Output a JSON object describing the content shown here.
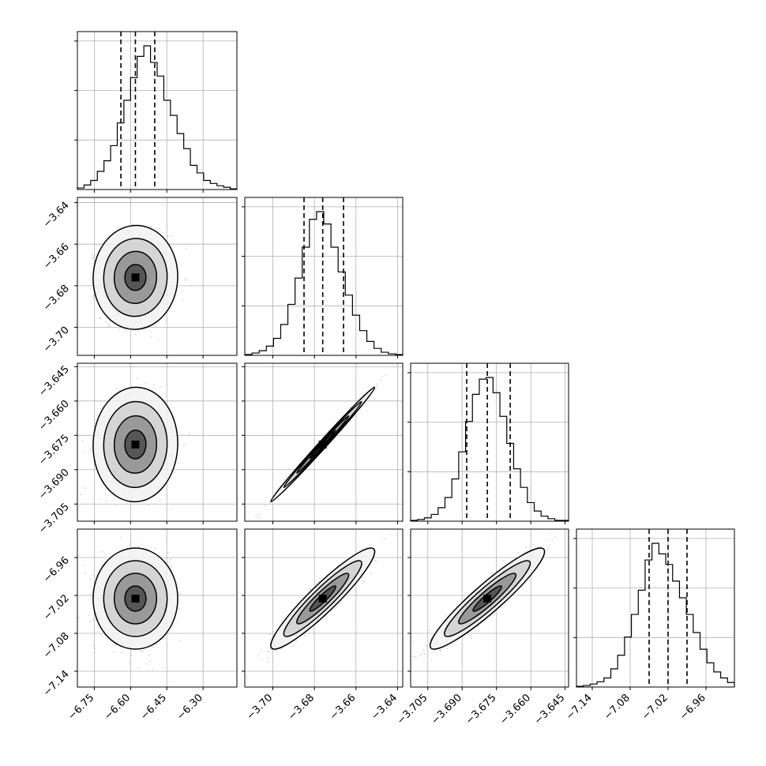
{
  "chart_data": {
    "type": "corner",
    "grid": true,
    "n_params": 4,
    "quantiles_shown": [
      0.16,
      0.5,
      0.84
    ],
    "params": [
      {
        "index": 0,
        "median": -6.58,
        "lower": -6.64,
        "upper": -6.5,
        "range": [
          -6.82,
          -6.16
        ],
        "ticks": [
          -6.75,
          -6.6,
          -6.45,
          -6.3
        ],
        "tick_labels": [
          "−6.75",
          "−6.60",
          "−6.45",
          "−6.30"
        ]
      },
      {
        "index": 1,
        "median": -3.676,
        "lower": -3.685,
        "upper": -3.666,
        "range": [
          -3.7135,
          -3.6375
        ],
        "ticks": [
          -3.7,
          -3.68,
          -3.66,
          -3.64
        ],
        "tick_labels": [
          "−3.70",
          "−3.68",
          "−3.66",
          "−3.64"
        ]
      },
      {
        "index": 2,
        "median": -3.679,
        "lower": -3.688,
        "upper": -3.669,
        "range": [
          -3.7125,
          -3.6435
        ],
        "ticks": [
          -3.705,
          -3.69,
          -3.675,
          -3.66,
          -3.645
        ],
        "tick_labels": [
          "−3.705",
          "−3.690",
          "−3.675",
          "−3.660",
          "−3.645"
        ]
      },
      {
        "index": 3,
        "median": -7.02,
        "lower": -7.05,
        "upper": -6.99,
        "range": [
          -7.165,
          -6.915
        ],
        "ticks": [
          -7.14,
          -7.08,
          -7.02,
          -6.96
        ],
        "tick_labels": [
          "−7.14",
          "−7.08",
          "−7.02",
          "−6.96"
        ]
      }
    ],
    "histograms": [
      {
        "param": 0,
        "counts": [
          2,
          6,
          12,
          24,
          38,
          58,
          88,
          118,
          148,
          176,
          190,
          168,
          150,
          118,
          98,
          74,
          54,
          32,
          22,
          12,
          8,
          5,
          3,
          1
        ]
      },
      {
        "param": 1,
        "counts": [
          1,
          3,
          6,
          12,
          22,
          40,
          66,
          100,
          140,
          176,
          186,
          170,
          140,
          108,
          78,
          52,
          32,
          18,
          9,
          4,
          2,
          1
        ]
      },
      {
        "param": 2,
        "counts": [
          1,
          2,
          4,
          8,
          16,
          28,
          50,
          82,
          118,
          150,
          168,
          170,
          152,
          124,
          92,
          62,
          40,
          22,
          12,
          6,
          3,
          1,
          1
        ]
      },
      {
        "param": 3,
        "counts": [
          1,
          2,
          4,
          7,
          12,
          24,
          42,
          66,
          96,
          128,
          168,
          190,
          176,
          162,
          140,
          118,
          96,
          72,
          50,
          32,
          20,
          12,
          6
        ]
      }
    ],
    "pairs": [
      {
        "x": 0,
        "y": 1,
        "mean": [
          -6.58,
          -3.676
        ],
        "sd": [
          0.07,
          0.01
        ],
        "corr": 0.02
      },
      {
        "x": 0,
        "y": 2,
        "mean": [
          -6.58,
          -3.679
        ],
        "sd": [
          0.07,
          0.01
        ],
        "corr": 0.02
      },
      {
        "x": 1,
        "y": 2,
        "mean": [
          -3.676,
          -3.679
        ],
        "sd": [
          0.01,
          0.01
        ],
        "corr": 0.995
      },
      {
        "x": 0,
        "y": 3,
        "mean": [
          -6.58,
          -7.025
        ],
        "sd": [
          0.07,
          0.032
        ],
        "corr": 0.0
      },
      {
        "x": 1,
        "y": 3,
        "mean": [
          -3.676,
          -7.025
        ],
        "sd": [
          0.01,
          0.032
        ],
        "corr": 0.93
      },
      {
        "x": 2,
        "y": 3,
        "mean": [
          -3.679,
          -7.025
        ],
        "sd": [
          0.01,
          0.032
        ],
        "corr": 0.93
      }
    ],
    "contour_levels_sigma": [
      0.5,
      1.0,
      1.5,
      2.0
    ]
  }
}
